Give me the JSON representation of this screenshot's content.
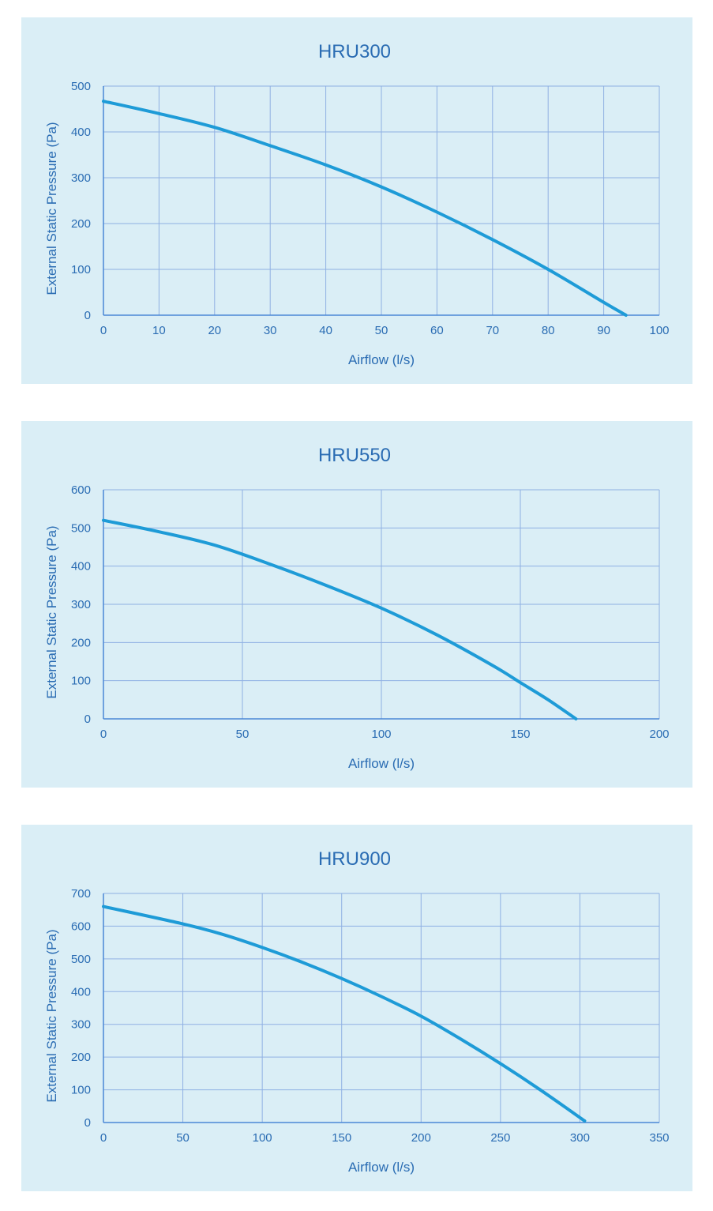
{
  "colors": {
    "panel_background": "#daeef6",
    "grid": "#8fb0e3",
    "axis": "#4a87d6",
    "text": "#2a6cb3",
    "curve": "#1e9bd7"
  },
  "chart_data": [
    {
      "type": "line",
      "title": "HRU300",
      "xlabel": "Airflow (l/s)",
      "ylabel": "External Static Pressure (Pa)",
      "xlim": [
        0,
        100
      ],
      "ylim": [
        0,
        500
      ],
      "xticks": [
        "0",
        "10",
        "20",
        "30",
        "40",
        "50",
        "60",
        "70",
        "80",
        "90",
        "100"
      ],
      "yticks": [
        "0",
        "100",
        "200",
        "300",
        "400",
        "500"
      ],
      "grid": true,
      "series": [
        {
          "x": [
            0,
            10,
            20,
            30,
            40,
            50,
            60,
            70,
            80,
            90,
            94
          ],
          "y": [
            467,
            440,
            410,
            370,
            328,
            280,
            225,
            165,
            100,
            28,
            0
          ]
        }
      ]
    },
    {
      "type": "line",
      "title": "HRU550",
      "xlabel": "Airflow (l/s)",
      "ylabel": "External Static Pressure (Pa)",
      "xlim": [
        0,
        200
      ],
      "ylim": [
        0,
        600
      ],
      "xticks": [
        "0",
        "50",
        "100",
        "150",
        "200"
      ],
      "yticks": [
        "0",
        "100",
        "200",
        "300",
        "400",
        "500",
        "600"
      ],
      "grid": true,
      "series": [
        {
          "x": [
            0,
            20,
            40,
            60,
            80,
            100,
            120,
            140,
            150,
            160,
            170
          ],
          "y": [
            520,
            490,
            455,
            405,
            350,
            290,
            220,
            140,
            95,
            50,
            0
          ]
        }
      ]
    },
    {
      "type": "line",
      "title": "HRU900",
      "xlabel": "Airflow (l/s)",
      "ylabel": "External Static Pressure (Pa)",
      "xlim": [
        0,
        350
      ],
      "ylim": [
        0,
        700
      ],
      "xticks": [
        "0",
        "50",
        "100",
        "150",
        "200",
        "250",
        "300",
        "350"
      ],
      "yticks": [
        "0",
        "100",
        "200",
        "300",
        "400",
        "500",
        "600",
        "700"
      ],
      "grid": true,
      "series": [
        {
          "x": [
            0,
            50,
            75,
            100,
            125,
            150,
            175,
            200,
            225,
            250,
            275,
            303
          ],
          "y": [
            660,
            607,
            575,
            535,
            490,
            440,
            385,
            325,
            255,
            180,
            100,
            5
          ]
        }
      ]
    }
  ]
}
